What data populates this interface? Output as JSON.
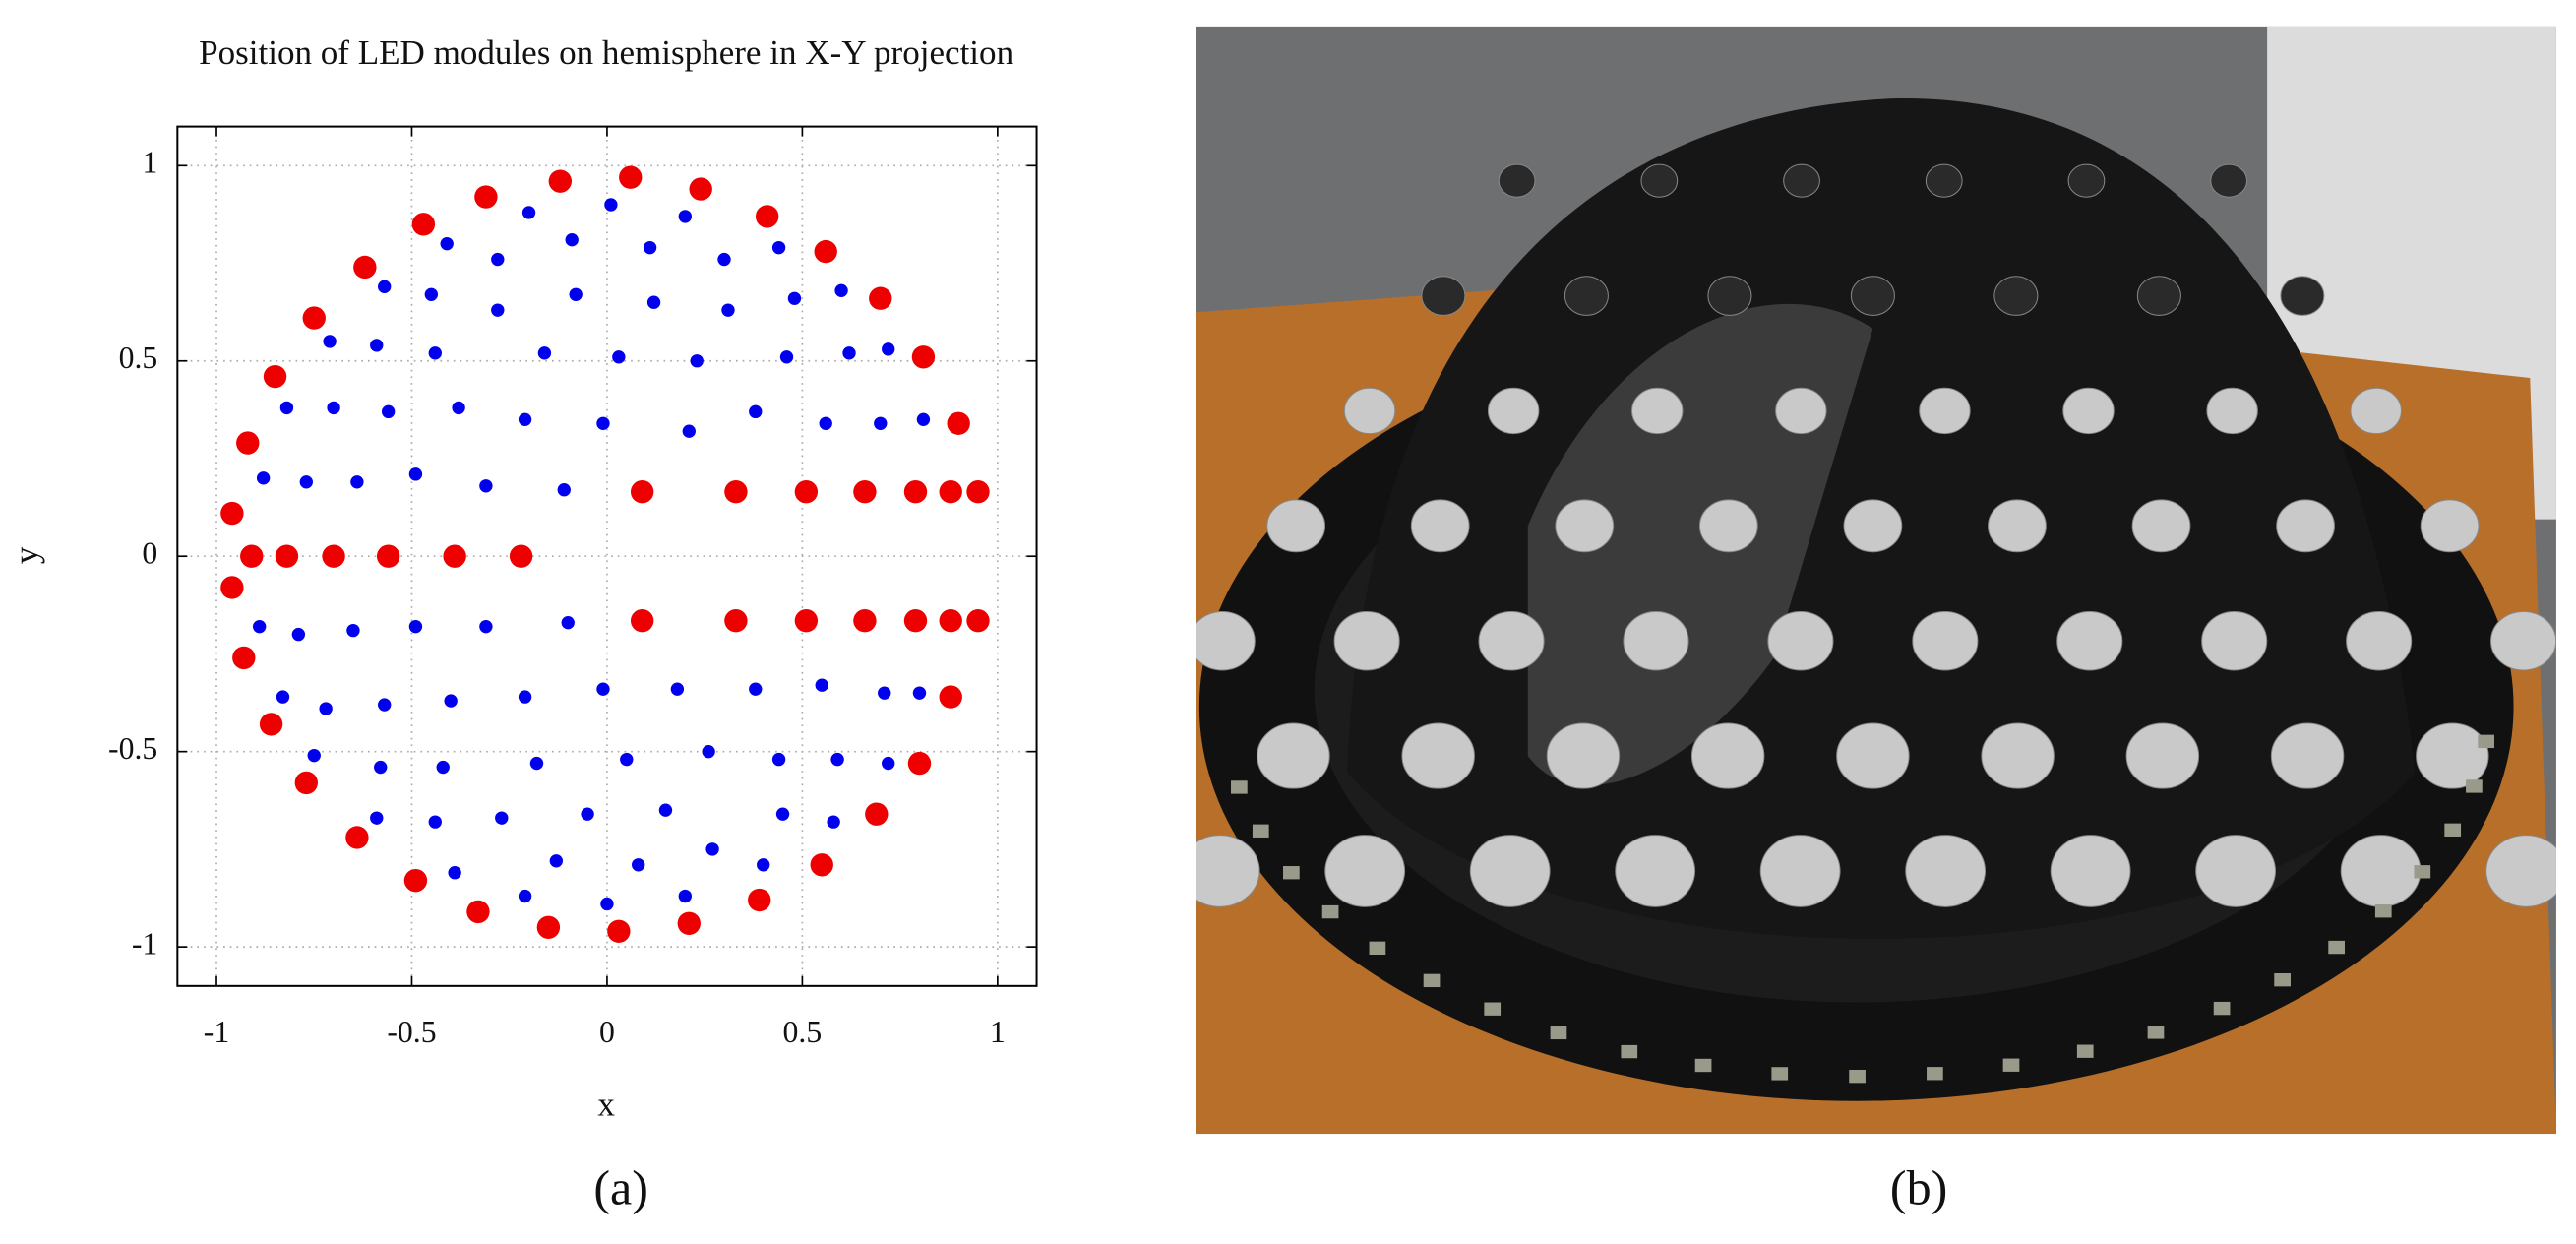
{
  "chart_data": {
    "type": "scatter",
    "title": "Position of LED modules on hemisphere in X-Y projection",
    "x_label": "x",
    "y_label": "y",
    "xlim": [
      -1.1,
      1.1
    ],
    "ylim": [
      -1.1,
      1.1
    ],
    "xticks": [
      -1,
      -0.5,
      0,
      0.5,
      1
    ],
    "yticks": [
      -1,
      -0.5,
      0,
      0.5,
      1
    ],
    "grid": true,
    "series": [
      {
        "color": "#ee0000",
        "x": [
          0.06,
          -0.12,
          0.24,
          -0.31,
          0.41,
          -0.47,
          0.56,
          -0.62,
          0.7,
          -0.75,
          0.81,
          -0.85,
          0.9,
          -0.92,
          -0.96,
          -0.91,
          -0.96,
          -0.93,
          -0.86,
          -0.77,
          -0.64,
          -0.49,
          -0.33,
          -0.15,
          0.03,
          0.21,
          0.39,
          0.55,
          0.69,
          0.8,
          0.88,
          -0.82,
          -0.7,
          -0.56,
          -0.39,
          -0.22,
          0.09,
          0.33,
          0.51,
          0.66,
          0.79,
          0.88,
          0.95,
          0.09,
          0.33,
          0.51,
          0.66,
          0.79,
          0.88,
          0.95
        ],
        "y": [
          0.97,
          0.96,
          0.94,
          0.92,
          0.87,
          0.85,
          0.78,
          0.74,
          0.66,
          0.61,
          0.51,
          0.46,
          0.34,
          0.29,
          0.11,
          0.0,
          -0.08,
          -0.26,
          -0.43,
          -0.58,
          -0.72,
          -0.83,
          -0.91,
          -0.95,
          -0.96,
          -0.94,
          -0.88,
          -0.79,
          -0.66,
          -0.53,
          -0.36,
          0.0,
          0.0,
          0.0,
          0.0,
          0.0,
          0.165,
          0.165,
          0.165,
          0.165,
          0.165,
          0.165,
          0.165,
          -0.165,
          -0.165,
          -0.165,
          -0.165,
          -0.165,
          -0.165,
          -0.165
        ]
      },
      {
        "color": "#0000ee",
        "x": [
          0.01,
          -0.2,
          -0.09,
          0.11,
          0.2,
          -0.41,
          -0.28,
          0.3,
          0.44,
          -0.57,
          -0.45,
          -0.08,
          0.12,
          -0.28,
          0.31,
          0.48,
          0.6,
          -0.71,
          -0.59,
          -0.44,
          -0.16,
          0.03,
          0.23,
          0.46,
          0.62,
          0.72,
          -0.82,
          -0.7,
          -0.56,
          -0.38,
          -0.21,
          -0.01,
          0.21,
          0.38,
          0.56,
          0.7,
          0.81,
          -0.88,
          -0.77,
          -0.64,
          -0.49,
          -0.31,
          -0.11,
          -0.89,
          -0.79,
          -0.65,
          -0.49,
          -0.31,
          -0.1,
          -0.83,
          -0.72,
          -0.57,
          -0.4,
          -0.21,
          -0.01,
          0.18,
          0.38,
          0.55,
          0.71,
          0.8,
          -0.75,
          -0.58,
          -0.42,
          -0.18,
          0.05,
          0.26,
          0.44,
          0.59,
          0.72,
          -0.59,
          -0.44,
          -0.27,
          -0.05,
          0.15,
          0.45,
          0.58,
          -0.39,
          -0.13,
          0.08,
          0.27,
          0.4,
          -0.21,
          0.0,
          0.2
        ],
        "y": [
          0.9,
          0.88,
          0.81,
          0.79,
          0.87,
          0.8,
          0.76,
          0.76,
          0.79,
          0.69,
          0.67,
          0.67,
          0.65,
          0.63,
          0.63,
          0.66,
          0.68,
          0.55,
          0.54,
          0.52,
          0.52,
          0.51,
          0.5,
          0.51,
          0.52,
          0.53,
          0.38,
          0.38,
          0.37,
          0.38,
          0.35,
          0.34,
          0.32,
          0.37,
          0.34,
          0.34,
          0.35,
          0.2,
          0.19,
          0.19,
          0.21,
          0.18,
          0.17,
          -0.18,
          -0.2,
          -0.19,
          -0.18,
          -0.18,
          -0.17,
          -0.36,
          -0.39,
          -0.38,
          -0.37,
          -0.36,
          -0.34,
          -0.34,
          -0.34,
          -0.33,
          -0.35,
          -0.35,
          -0.51,
          -0.54,
          -0.54,
          -0.53,
          -0.52,
          -0.5,
          -0.52,
          -0.52,
          -0.53,
          -0.67,
          -0.68,
          -0.67,
          -0.66,
          -0.65,
          -0.66,
          -0.68,
          -0.81,
          -0.78,
          -0.79,
          -0.75,
          -0.79,
          -0.87,
          -0.89,
          -0.87
        ]
      }
    ]
  },
  "panels": {
    "left_label": "(a)",
    "right_label": "(b)"
  }
}
